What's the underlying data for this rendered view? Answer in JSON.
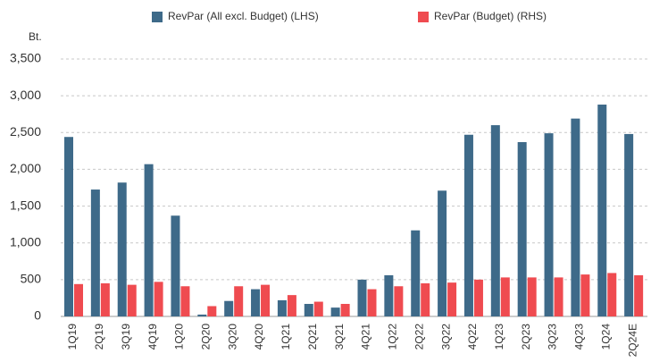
{
  "chart_data": {
    "type": "bar",
    "y_label": "Bt.",
    "categories": [
      "1Q19",
      "2Q19",
      "3Q19",
      "4Q19",
      "1Q20",
      "2Q20",
      "3Q20",
      "4Q20",
      "1Q21",
      "2Q21",
      "3Q21",
      "4Q21",
      "1Q22",
      "2Q22",
      "3Q22",
      "4Q22",
      "1Q23",
      "2Q23",
      "3Q23",
      "4Q23",
      "1Q24",
      "2Q24E"
    ],
    "series": [
      {
        "name": "RevPar (All excl. Budget) (LHS)",
        "color": "#3e6a89",
        "values": [
          2440,
          1725,
          1820,
          2070,
          1370,
          25,
          210,
          370,
          220,
          170,
          120,
          500,
          560,
          1170,
          1710,
          2470,
          2600,
          2370,
          2490,
          2690,
          2880,
          2480
        ]
      },
      {
        "name": "RevPar (Budget) (RHS)",
        "color": "#ef4b50",
        "values": [
          440,
          450,
          430,
          470,
          410,
          140,
          410,
          430,
          290,
          200,
          170,
          370,
          410,
          450,
          460,
          500,
          530,
          530,
          530,
          570,
          590,
          560
        ]
      }
    ],
    "ylim": [
      0,
      3500
    ],
    "yticks": [
      0,
      500,
      {
        "value": 1000,
        "label": "1,000"
      },
      {
        "value": 1500,
        "label": "1,500"
      },
      {
        "value": 2000,
        "label": "2,000"
      },
      {
        "value": 2500,
        "label": "2,500"
      },
      {
        "value": 3000,
        "label": "3,000"
      },
      {
        "value": 3500,
        "label": "3,500"
      }
    ],
    "grid": true,
    "legend": "top"
  }
}
